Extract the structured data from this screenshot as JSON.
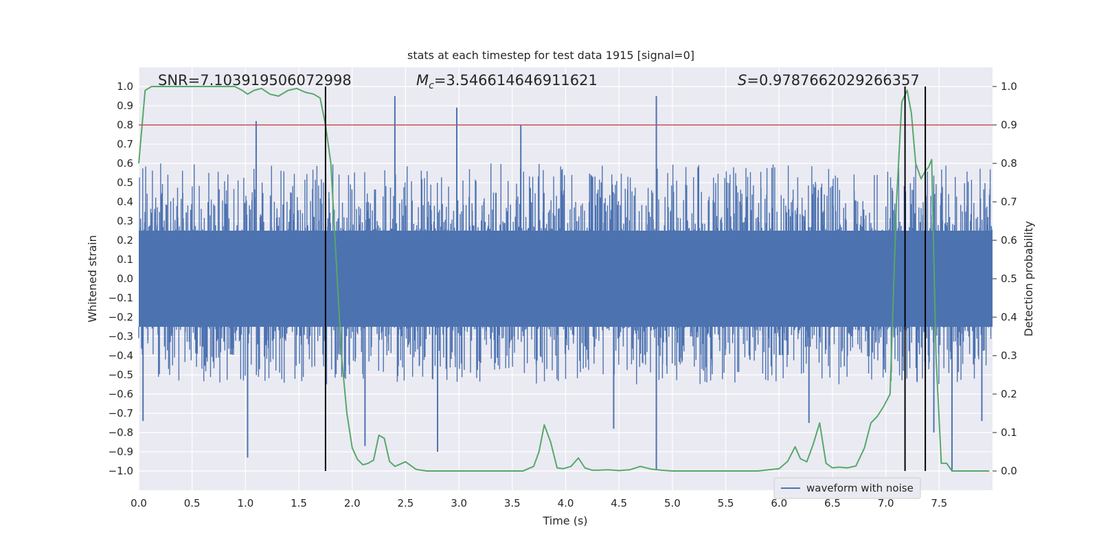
{
  "chart_data": {
    "type": "line",
    "title": "stats at each timestep for test data 1915 [signal=0]",
    "xlabel": "Time (s)",
    "ylabel_left": "Whitened strain",
    "ylabel_right": "Detection probability",
    "xlim": [
      0.0,
      8.0
    ],
    "ylim_left": [
      -1.1,
      1.1
    ],
    "ylim_right": [
      -0.05,
      1.05
    ],
    "x_ticks": [
      "0.0",
      "0.5",
      "1.0",
      "1.5",
      "2.0",
      "2.5",
      "3.0",
      "3.5",
      "4.0",
      "4.5",
      "5.0",
      "5.5",
      "6.0",
      "6.5",
      "7.0",
      "7.5"
    ],
    "y_ticks_left": [
      "1.0",
      "0.9",
      "0.8",
      "0.7",
      "0.6",
      "0.5",
      "0.4",
      "0.3",
      "0.2",
      "0.1",
      "0.0",
      "-0.1",
      "-0.2",
      "-0.3",
      "-0.4",
      "-0.5",
      "-0.6",
      "-0.7",
      "-0.8",
      "-0.9",
      "-1.0"
    ],
    "y_ticks_right": [
      "1.0",
      "0.9",
      "0.8",
      "0.7",
      "0.6",
      "0.5",
      "0.4",
      "0.3",
      "0.2",
      "0.1",
      "0.0"
    ],
    "grid": true,
    "legend": {
      "entries": [
        "waveform with noise"
      ],
      "placement": "lower-right"
    },
    "annotations": {
      "snr": "SNR=7.103919506072998",
      "mc_symbol": "M",
      "mc_subscript": "c",
      "mc_value": "=3.546614646911621",
      "s_symbol": "S",
      "s_value": "=0.9787662029266357"
    },
    "threshold_probability": 0.9,
    "vertical_lines_s": [
      1.75,
      7.18,
      7.37
    ],
    "waveform_noise": {
      "name": "waveform with noise",
      "color": "#4c72b0",
      "dense_band": [
        -0.25,
        0.25
      ],
      "typical_extent": [
        -0.55,
        0.6
      ],
      "spikes": [
        {
          "t": 1.1,
          "v": 0.82
        },
        {
          "t": 2.4,
          "v": 0.95
        },
        {
          "t": 2.98,
          "v": 0.89
        },
        {
          "t": 3.58,
          "v": 0.8
        },
        {
          "t": 4.85,
          "v": 0.95
        },
        {
          "t": 0.04,
          "v": -0.74
        },
        {
          "t": 1.02,
          "v": -0.93
        },
        {
          "t": 2.12,
          "v": -0.87
        },
        {
          "t": 2.8,
          "v": -0.9
        },
        {
          "t": 4.85,
          "v": -0.99
        },
        {
          "t": 7.62,
          "v": -1.0
        },
        {
          "t": 7.45,
          "v": -0.8
        },
        {
          "t": 4.45,
          "v": -0.78
        },
        {
          "t": 6.28,
          "v": -0.75
        },
        {
          "t": 7.9,
          "v": -0.74
        }
      ]
    },
    "detection_probability": {
      "name": "detection probability",
      "color": "#55a868",
      "x": [
        0.0,
        0.06,
        0.12,
        0.2,
        0.3,
        0.4,
        0.5,
        0.6,
        0.7,
        0.8,
        0.9,
        0.97,
        1.02,
        1.08,
        1.15,
        1.23,
        1.31,
        1.4,
        1.48,
        1.56,
        1.64,
        1.7,
        1.75,
        1.8,
        1.85,
        1.9,
        1.95,
        2.0,
        2.05,
        2.1,
        2.15,
        2.2,
        2.25,
        2.3,
        2.35,
        2.4,
        2.45,
        2.5,
        2.6,
        2.7,
        2.8,
        2.9,
        3.0,
        3.2,
        3.4,
        3.6,
        3.7,
        3.75,
        3.8,
        3.86,
        3.92,
        3.98,
        4.05,
        4.12,
        4.18,
        4.25,
        4.3,
        4.4,
        4.5,
        4.6,
        4.7,
        4.8,
        4.9,
        5.0,
        5.2,
        5.4,
        5.6,
        5.8,
        6.0,
        6.08,
        6.15,
        6.2,
        6.26,
        6.32,
        6.38,
        6.44,
        6.5,
        6.56,
        6.64,
        6.72,
        6.8,
        6.86,
        6.92,
        6.98,
        7.04,
        7.1,
        7.15,
        7.2,
        7.24,
        7.28,
        7.33,
        7.37,
        7.4,
        7.43,
        7.47,
        7.52,
        7.57,
        7.62,
        7.68,
        7.75,
        7.85,
        7.97
      ],
      "y": [
        0.8,
        0.99,
        1.0,
        1.0,
        1.0,
        1.0,
        1.0,
        1.0,
        1.0,
        1.0,
        1.0,
        0.99,
        0.98,
        0.99,
        0.995,
        0.98,
        0.975,
        0.99,
        0.995,
        0.985,
        0.98,
        0.97,
        0.9,
        0.8,
        0.55,
        0.3,
        0.15,
        0.06,
        0.03,
        0.016,
        0.02,
        0.028,
        0.093,
        0.085,
        0.025,
        0.012,
        0.018,
        0.024,
        0.004,
        0.0,
        0.0,
        0.0,
        0.0,
        0.0,
        0.0,
        0.0,
        0.012,
        0.05,
        0.12,
        0.075,
        0.008,
        0.006,
        0.012,
        0.034,
        0.008,
        0.002,
        0.002,
        0.003,
        0.001,
        0.003,
        0.012,
        0.005,
        0.002,
        0.0,
        0.0,
        0.0,
        0.0,
        0.0,
        0.006,
        0.025,
        0.063,
        0.032,
        0.024,
        0.07,
        0.125,
        0.02,
        0.008,
        0.01,
        0.008,
        0.013,
        0.06,
        0.125,
        0.142,
        0.168,
        0.2,
        0.7,
        0.96,
        0.99,
        0.93,
        0.8,
        0.76,
        0.78,
        0.79,
        0.81,
        0.3,
        0.02,
        0.02,
        0.0,
        0.0,
        0.0,
        0.0,
        0.0
      ]
    }
  }
}
